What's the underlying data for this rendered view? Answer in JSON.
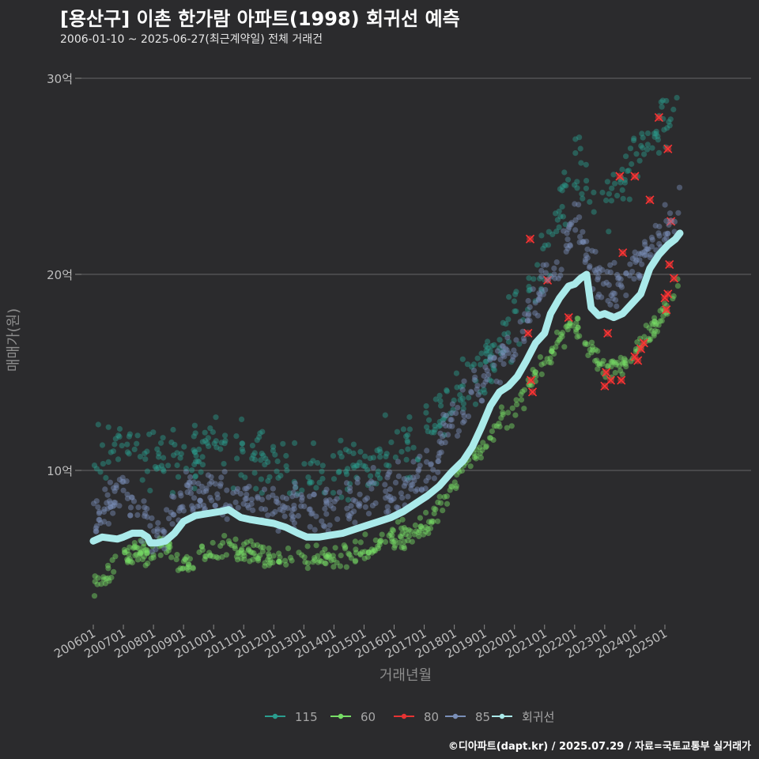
{
  "header": {
    "title": "[용산구] 이촌 한가람 아파트(1998) 회귀선 예측",
    "subtitle": "2006-01-10 ~ 2025-06-27(최근계약일) 전체 거래건"
  },
  "footer": {
    "credit": "©디아파트(dapt.kr) / 2025.07.29 / 자료=국토교통부 실거래가"
  },
  "chart_data": {
    "type": "scatter",
    "title": "[용산구] 이촌 한가람 아파트(1998) 회귀선 예측",
    "xlabel": "거래년월",
    "ylabel": "매매가(원)",
    "xlim": [
      2005.8,
      2026.0
    ],
    "ylim": [
      2.5,
      31.5
    ],
    "y_ticks": [
      10,
      20,
      30
    ],
    "y_tick_labels": [
      "10억",
      "20억",
      "30억"
    ],
    "x_ticks": [
      2006,
      2007,
      2008,
      2009,
      2010,
      2011,
      2012,
      2013,
      2014,
      2015,
      2016,
      2017,
      2018,
      2019,
      2020,
      2021,
      2022,
      2023,
      2024,
      2025
    ],
    "x_tick_labels": [
      "200601",
      "200701",
      "200801",
      "200901",
      "201001",
      "201101",
      "201201",
      "201301",
      "201401",
      "201501",
      "201601",
      "201701",
      "201801",
      "201901",
      "202001",
      "202101",
      "202201",
      "202301",
      "202401",
      "202501"
    ],
    "legend_position": "bottom",
    "series": [
      {
        "name": "115",
        "color": "#2a9d8f",
        "band": 1.1,
        "n": 420,
        "trend": [
          [
            2006.0,
            11.0
          ],
          [
            2007.0,
            11.5
          ],
          [
            2008.0,
            10.6
          ],
          [
            2009.0,
            10.5
          ],
          [
            2010.0,
            11.2
          ],
          [
            2011.0,
            10.8
          ],
          [
            2012.0,
            10.2
          ],
          [
            2013.0,
            9.8
          ],
          [
            2014.0,
            10.0
          ],
          [
            2015.0,
            10.4
          ],
          [
            2016.0,
            11.2
          ],
          [
            2017.0,
            12.0
          ],
          [
            2018.0,
            13.5
          ],
          [
            2019.0,
            15.5
          ],
          [
            2020.0,
            17.5
          ],
          [
            2021.0,
            21.0
          ],
          [
            2022.0,
            25.5
          ],
          [
            2023.0,
            23.5
          ],
          [
            2024.0,
            26.0
          ],
          [
            2025.0,
            27.5
          ],
          [
            2025.5,
            28.0
          ]
        ]
      },
      {
        "name": "60",
        "color": "#77dd66",
        "band": 0.45,
        "n": 500,
        "trend": [
          [
            2006.0,
            4.1
          ],
          [
            2006.5,
            4.6
          ],
          [
            2007.0,
            5.8
          ],
          [
            2007.5,
            5.7
          ],
          [
            2008.0,
            5.8
          ],
          [
            2008.5,
            6.1
          ],
          [
            2009.0,
            5.0
          ],
          [
            2009.5,
            5.6
          ],
          [
            2010.0,
            5.9
          ],
          [
            2010.5,
            6.0
          ],
          [
            2011.0,
            5.6
          ],
          [
            2011.5,
            5.8
          ],
          [
            2012.0,
            5.5
          ],
          [
            2012.5,
            5.6
          ],
          [
            2013.0,
            5.4
          ],
          [
            2013.5,
            5.6
          ],
          [
            2014.0,
            5.5
          ],
          [
            2014.5,
            5.6
          ],
          [
            2015.0,
            5.9
          ],
          [
            2015.5,
            6.2
          ],
          [
            2016.0,
            6.5
          ],
          [
            2016.5,
            6.8
          ],
          [
            2017.0,
            7.0
          ],
          [
            2017.5,
            8.0
          ],
          [
            2018.0,
            9.5
          ],
          [
            2018.5,
            10.5
          ],
          [
            2019.0,
            11.2
          ],
          [
            2019.5,
            12.5
          ],
          [
            2020.0,
            13.0
          ],
          [
            2020.5,
            14.3
          ],
          [
            2021.0,
            15.5
          ],
          [
            2021.5,
            16.5
          ],
          [
            2022.0,
            17.5
          ],
          [
            2023.0,
            15.0
          ],
          [
            2023.5,
            15.5
          ],
          [
            2024.0,
            16.0
          ],
          [
            2024.5,
            17.0
          ],
          [
            2025.0,
            18.0
          ],
          [
            2025.5,
            20.0
          ]
        ]
      },
      {
        "name": "80",
        "color": "#e63333",
        "points": [
          [
            2020.52,
            21.8
          ],
          [
            2020.45,
            17.0
          ],
          [
            2020.55,
            14.6
          ],
          [
            2020.6,
            14.0
          ],
          [
            2021.1,
            19.7
          ],
          [
            2021.8,
            17.8
          ],
          [
            2023.0,
            14.3
          ],
          [
            2023.05,
            15.0
          ],
          [
            2023.1,
            17.0
          ],
          [
            2023.2,
            14.6
          ],
          [
            2023.5,
            25.0
          ],
          [
            2023.6,
            21.1
          ],
          [
            2023.55,
            14.6
          ],
          [
            2024.0,
            25.0
          ],
          [
            2024.0,
            15.8
          ],
          [
            2024.1,
            15.6
          ],
          [
            2024.2,
            16.2
          ],
          [
            2024.3,
            16.5
          ],
          [
            2024.5,
            23.8
          ],
          [
            2024.8,
            28.0
          ],
          [
            2025.1,
            26.4
          ],
          [
            2025.2,
            22.7
          ],
          [
            2025.0,
            18.8
          ],
          [
            2025.05,
            18.2
          ],
          [
            2025.1,
            19.0
          ],
          [
            2025.15,
            20.5
          ],
          [
            2025.3,
            19.8
          ]
        ]
      },
      {
        "name": "85",
        "color": "#7a8fb8",
        "band": 0.9,
        "n": 560,
        "trend": [
          [
            2006.0,
            7.5
          ],
          [
            2006.5,
            8.5
          ],
          [
            2007.0,
            8.8
          ],
          [
            2007.5,
            8.0
          ],
          [
            2008.0,
            7.0
          ],
          [
            2008.5,
            7.5
          ],
          [
            2009.0,
            8.5
          ],
          [
            2009.5,
            9.0
          ],
          [
            2010.0,
            8.8
          ],
          [
            2010.5,
            8.5
          ],
          [
            2011.0,
            8.5
          ],
          [
            2011.5,
            8.5
          ],
          [
            2012.0,
            8.2
          ],
          [
            2012.5,
            8.0
          ],
          [
            2013.0,
            7.8
          ],
          [
            2013.5,
            7.8
          ],
          [
            2014.0,
            8.0
          ],
          [
            2014.5,
            8.2
          ],
          [
            2015.0,
            8.5
          ],
          [
            2015.5,
            8.7
          ],
          [
            2016.0,
            9.0
          ],
          [
            2016.5,
            9.2
          ],
          [
            2017.0,
            10.0
          ],
          [
            2017.5,
            11.0
          ],
          [
            2018.0,
            12.5
          ],
          [
            2018.5,
            13.5
          ],
          [
            2019.0,
            14.8
          ],
          [
            2019.5,
            15.5
          ],
          [
            2020.0,
            16.5
          ],
          [
            2020.5,
            18.0
          ],
          [
            2021.0,
            19.5
          ],
          [
            2021.5,
            21.0
          ],
          [
            2022.0,
            23.0
          ],
          [
            2023.0,
            19.5
          ],
          [
            2023.5,
            19.0
          ],
          [
            2024.0,
            20.5
          ],
          [
            2024.5,
            21.5
          ],
          [
            2025.0,
            22.0
          ],
          [
            2025.5,
            24.0
          ]
        ]
      }
    ],
    "regression": {
      "name": "회귀선",
      "color": "#aaeaea",
      "points": [
        [
          2006.0,
          6.4
        ],
        [
          2006.3,
          6.6
        ],
        [
          2006.8,
          6.5
        ],
        [
          2007.0,
          6.6
        ],
        [
          2007.3,
          6.8
        ],
        [
          2007.6,
          6.8
        ],
        [
          2007.8,
          6.6
        ],
        [
          2007.9,
          6.3
        ],
        [
          2008.1,
          6.3
        ],
        [
          2008.4,
          6.4
        ],
        [
          2008.7,
          6.8
        ],
        [
          2009.0,
          7.4
        ],
        [
          2009.4,
          7.7
        ],
        [
          2009.8,
          7.8
        ],
        [
          2010.2,
          7.9
        ],
        [
          2010.5,
          8.0
        ],
        [
          2010.9,
          7.6
        ],
        [
          2011.2,
          7.5
        ],
        [
          2011.6,
          7.4
        ],
        [
          2012.0,
          7.3
        ],
        [
          2012.4,
          7.1
        ],
        [
          2012.8,
          6.8
        ],
        [
          2013.1,
          6.6
        ],
        [
          2013.5,
          6.6
        ],
        [
          2013.9,
          6.7
        ],
        [
          2014.3,
          6.8
        ],
        [
          2014.7,
          7.0
        ],
        [
          2015.1,
          7.2
        ],
        [
          2015.5,
          7.4
        ],
        [
          2015.9,
          7.6
        ],
        [
          2016.3,
          7.9
        ],
        [
          2016.7,
          8.3
        ],
        [
          2017.1,
          8.7
        ],
        [
          2017.5,
          9.2
        ],
        [
          2017.9,
          9.9
        ],
        [
          2018.3,
          10.5
        ],
        [
          2018.6,
          11.2
        ],
        [
          2018.9,
          12.2
        ],
        [
          2019.2,
          13.3
        ],
        [
          2019.5,
          14.0
        ],
        [
          2019.8,
          14.3
        ],
        [
          2020.1,
          14.8
        ],
        [
          2020.4,
          15.6
        ],
        [
          2020.7,
          16.5
        ],
        [
          2021.0,
          17.0
        ],
        [
          2021.2,
          18.0
        ],
        [
          2021.5,
          18.8
        ],
        [
          2021.8,
          19.4
        ],
        [
          2022.0,
          19.5
        ],
        [
          2022.2,
          19.8
        ],
        [
          2022.4,
          20.0
        ],
        [
          2022.55,
          18.3
        ],
        [
          2022.8,
          17.9
        ],
        [
          2023.0,
          18.0
        ],
        [
          2023.3,
          17.8
        ],
        [
          2023.6,
          18.0
        ],
        [
          2023.9,
          18.5
        ],
        [
          2024.2,
          19.0
        ],
        [
          2024.5,
          20.3
        ],
        [
          2024.8,
          21.0
        ],
        [
          2025.1,
          21.5
        ],
        [
          2025.35,
          21.8
        ],
        [
          2025.5,
          22.1
        ]
      ]
    }
  }
}
